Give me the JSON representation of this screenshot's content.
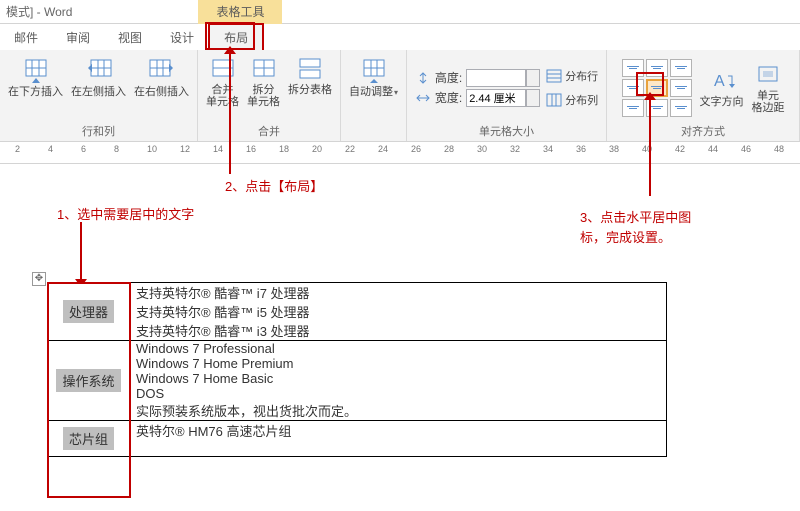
{
  "title": {
    "left": "模式] - Word",
    "context_tab": "表格工具"
  },
  "tabs": {
    "t0": "邮件",
    "t1": "审阅",
    "t2": "视图",
    "t3": "设计",
    "t4": "布局"
  },
  "groups": {
    "rowscols": {
      "label": "行和列",
      "insert_below": "在下方插入",
      "insert_left": "在左侧插入",
      "insert_right": "在右侧插入"
    },
    "merge": {
      "label": "合并",
      "merge_cells": "合并\n单元格",
      "split_cells": "拆分\n单元格",
      "split_table": "拆分表格"
    },
    "autofit": "自动调整",
    "cellsize": {
      "label": "单元格大小",
      "height_label": "高度:",
      "height_value": "",
      "width_label": "宽度:",
      "width_value": "2.44 厘米",
      "dist_rows": "分布行",
      "dist_cols": "分布列"
    },
    "align": {
      "label": "对齐方式",
      "text_dir": "文字方向",
      "cell_margin": "单元\n格边距"
    }
  },
  "ruler": {
    "marks": [
      "2",
      "4",
      "6",
      "8",
      "10",
      "12",
      "14",
      "16",
      "18",
      "20",
      "22",
      "24",
      "26",
      "28",
      "30",
      "32",
      "34",
      "36",
      "38",
      "40",
      "42",
      "44",
      "46",
      "48"
    ]
  },
  "annotations": {
    "a1": "1、选中需要居中的文字",
    "a2": "2、点击【布局】",
    "a3_l1": "3、点击水平居中图",
    "a3_l2": "标，完成设置。"
  },
  "table": {
    "r1_header": "处理器",
    "r1_l1": "支持英特尔® 酷睿™ i7 处理器",
    "r1_l2": "支持英特尔® 酷睿™ i5 处理器",
    "r1_l3": "支持英特尔® 酷睿™ i3 处理器",
    "r2_header": "操作系统",
    "r2_l1": "Windows 7 Professional",
    "r2_l2": "Windows 7 Home Premium",
    "r2_l3": "Windows 7 Home Basic",
    "r2_l4": "DOS",
    "r2_l5": "实际预装系统版本，视出货批次而定。",
    "r3_header": "芯片组",
    "r3_l1": "英特尔® HM76 高速芯片组"
  },
  "colors": {
    "accent_red": "#c00000",
    "ctx_bg": "#f8e09a",
    "ribbon_bg": "#f3f3f3"
  }
}
